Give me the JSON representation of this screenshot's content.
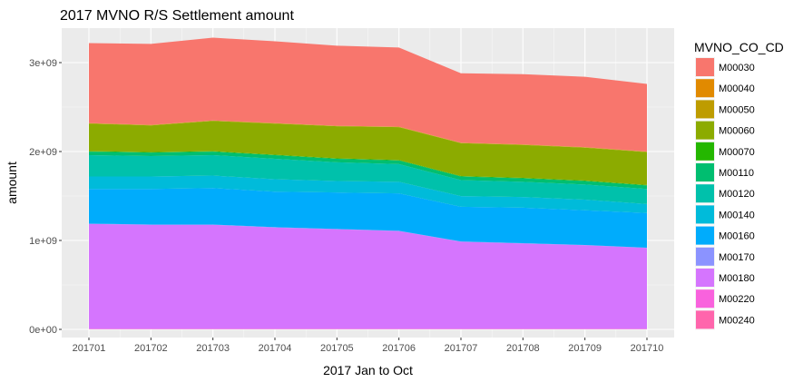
{
  "chart_data": {
    "type": "area",
    "stacked": true,
    "title": "2017 MVNO R/S Settlement amount",
    "xlabel": "2017 Jan to Oct",
    "ylabel": "amount",
    "x": [
      "201701",
      "201702",
      "201703",
      "201704",
      "201705",
      "201706",
      "201707",
      "201708",
      "201709",
      "201710"
    ],
    "ylim": [
      0,
      3300000000
    ],
    "y_ticks": [
      0,
      1000000000,
      2000000000,
      3000000000
    ],
    "y_tick_labels": [
      "0e+00",
      "1e+09",
      "2e+09",
      "3e+09"
    ],
    "grid": true,
    "legend": {
      "title": "MVNO_CO_CD",
      "position": "right"
    },
    "series": [
      {
        "name": "M00030",
        "color": "#F8766D",
        "values": [
          900000000,
          910000000,
          930000000,
          920000000,
          900000000,
          890000000,
          780000000,
          790000000,
          790000000,
          760000000
        ]
      },
      {
        "name": "M00040",
        "color": "#E18A00",
        "values": [
          3000000,
          3000000,
          3000000,
          3000000,
          3000000,
          3000000,
          3000000,
          3000000,
          3000000,
          3000000
        ]
      },
      {
        "name": "M00050",
        "color": "#BE9C00",
        "values": [
          3000000,
          3000000,
          3000000,
          3000000,
          3000000,
          3000000,
          3000000,
          3000000,
          3000000,
          3000000
        ]
      },
      {
        "name": "M00060",
        "color": "#8CAB00",
        "values": [
          310000000,
          300000000,
          340000000,
          350000000,
          360000000,
          370000000,
          370000000,
          370000000,
          370000000,
          370000000
        ]
      },
      {
        "name": "M00070",
        "color": "#24B700",
        "values": [
          5000000,
          5000000,
          5000000,
          5000000,
          5000000,
          5000000,
          5000000,
          5000000,
          5000000,
          5000000
        ]
      },
      {
        "name": "M00110",
        "color": "#00BE70",
        "values": [
          40000000,
          40000000,
          40000000,
          40000000,
          40000000,
          40000000,
          40000000,
          40000000,
          40000000,
          40000000
        ]
      },
      {
        "name": "M00120",
        "color": "#00C1AB",
        "values": [
          240000000,
          230000000,
          230000000,
          230000000,
          210000000,
          200000000,
          180000000,
          170000000,
          170000000,
          170000000
        ]
      },
      {
        "name": "M00140",
        "color": "#00BBDA",
        "values": [
          140000000,
          140000000,
          140000000,
          140000000,
          130000000,
          130000000,
          120000000,
          120000000,
          120000000,
          100000000
        ]
      },
      {
        "name": "M00160",
        "color": "#00ACFC",
        "values": [
          390000000,
          400000000,
          410000000,
          400000000,
          410000000,
          420000000,
          390000000,
          400000000,
          390000000,
          390000000
        ]
      },
      {
        "name": "M00170",
        "color": "#8B93FF",
        "values": [
          3000000,
          3000000,
          3000000,
          3000000,
          3000000,
          3000000,
          3000000,
          3000000,
          3000000,
          3000000
        ]
      },
      {
        "name": "M00180",
        "color": "#D575FE",
        "values": [
          1180000000,
          1170000000,
          1170000000,
          1140000000,
          1120000000,
          1100000000,
          980000000,
          960000000,
          940000000,
          910000000
        ]
      },
      {
        "name": "M00220",
        "color": "#F962DD",
        "values": [
          3000000,
          3000000,
          3000000,
          3000000,
          3000000,
          3000000,
          3000000,
          3000000,
          3000000,
          3000000
        ]
      },
      {
        "name": "M00240",
        "color": "#FF65AC",
        "values": [
          3000000,
          3000000,
          3000000,
          3000000,
          3000000,
          3000000,
          3000000,
          3000000,
          3000000,
          3000000
        ]
      }
    ]
  },
  "colors": {
    "panel_background": "#EBEBEB",
    "grid_major": "#FFFFFF"
  }
}
